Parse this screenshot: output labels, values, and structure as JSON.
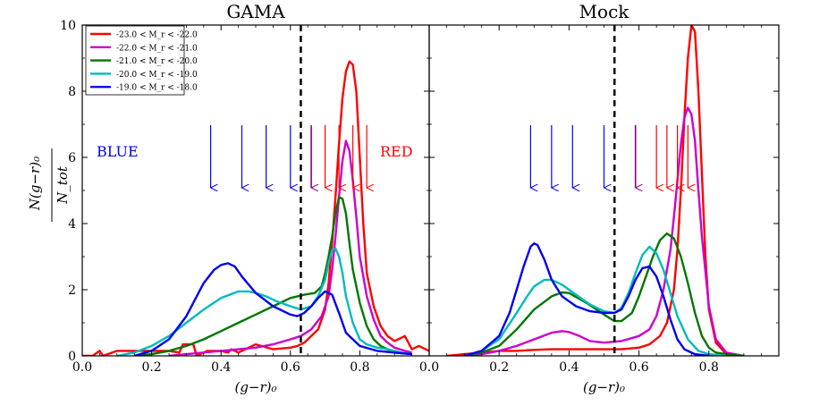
{
  "chart_data": {
    "type": "line",
    "xlabel": "(g−r)₀",
    "ylabel": {
      "numerator": "N(g−r)₀",
      "denominator": "N_tot"
    },
    "ylim": [
      0,
      10
    ],
    "y_ticks": [
      "0",
      "2",
      "4",
      "6",
      "8",
      "10"
    ],
    "legend": [
      {
        "label": "-23.0 < M_r < -22.0",
        "color": "#ff0000"
      },
      {
        "label": "-22.0 < M_r < -21.0",
        "color": "#cc00cc"
      },
      {
        "label": "-21.0 < M_r < -20.0",
        "color": "#007700"
      },
      {
        "label": "-20.0 < M_r < -19.0",
        "color": "#00bbbb"
      },
      {
        "label": "-19.0 < M_r < -18.0",
        "color": "#0000ee"
      }
    ],
    "annotation_blue": {
      "text": "BLUE",
      "color": "#0000ee"
    },
    "annotation_red": {
      "text": "RED",
      "color": "#ff0000"
    },
    "panels": [
      {
        "title": "GAMA",
        "xlim": [
          0.0,
          1.0
        ],
        "x_ticks": [
          "0.0",
          "0.2",
          "0.4",
          "0.6",
          "0.8"
        ],
        "divider_x": 0.63,
        "blue_arrows": [
          0.37,
          0.46,
          0.53,
          0.6
        ],
        "purple_arrow": 0.66,
        "red_arrows": [
          0.7,
          0.74,
          0.78,
          0.82
        ],
        "series": [
          {
            "name": "-23.0 < M_r < -22.0",
            "color": "#ff0000",
            "x": [
              0.0,
              0.03,
              0.05,
              0.06,
              0.1,
              0.15,
              0.2,
              0.25,
              0.28,
              0.29,
              0.32,
              0.33,
              0.35,
              0.36,
              0.4,
              0.42,
              0.43,
              0.45,
              0.5,
              0.55,
              0.6,
              0.62,
              0.64,
              0.66,
              0.68,
              0.7,
              0.71,
              0.72,
              0.73,
              0.74,
              0.75,
              0.76,
              0.77,
              0.78,
              0.79,
              0.8,
              0.81,
              0.82,
              0.84,
              0.86,
              0.88,
              0.9,
              0.93,
              0.95,
              0.97,
              1.0
            ],
            "y": [
              0.0,
              0.0,
              0.15,
              0.0,
              0.15,
              0.15,
              0.15,
              0.15,
              0.1,
              0.35,
              0.35,
              0.0,
              0.1,
              0.15,
              0.15,
              0.1,
              0.2,
              0.1,
              0.35,
              0.2,
              0.25,
              0.3,
              0.4,
              0.6,
              0.8,
              1.4,
              2.2,
              3.4,
              4.8,
              6.4,
              7.8,
              8.6,
              8.9,
              8.8,
              8.0,
              6.0,
              4.0,
              2.5,
              1.5,
              0.9,
              0.6,
              0.45,
              0.6,
              0.2,
              0.3,
              0.15
            ]
          },
          {
            "name": "-22.0 < M_r < -21.0",
            "color": "#cc00cc",
            "x": [
              0.25,
              0.3,
              0.35,
              0.4,
              0.45,
              0.5,
              0.55,
              0.6,
              0.63,
              0.66,
              0.69,
              0.71,
              0.72,
              0.73,
              0.74,
              0.75,
              0.76,
              0.77,
              0.78,
              0.79,
              0.8,
              0.82,
              0.84,
              0.86,
              0.88,
              0.9,
              0.93,
              0.95
            ],
            "y": [
              0.0,
              0.05,
              0.1,
              0.15,
              0.2,
              0.25,
              0.35,
              0.5,
              0.6,
              0.8,
              1.2,
              1.8,
              2.6,
              3.6,
              4.8,
              5.9,
              6.5,
              6.2,
              5.3,
              4.2,
              3.0,
              1.8,
              1.1,
              0.6,
              0.4,
              0.25,
              0.15,
              0.1
            ]
          },
          {
            "name": "-21.0 < M_r < -20.0",
            "color": "#007700",
            "x": [
              0.15,
              0.2,
              0.25,
              0.3,
              0.35,
              0.4,
              0.45,
              0.5,
              0.55,
              0.6,
              0.64,
              0.67,
              0.69,
              0.7,
              0.71,
              0.72,
              0.73,
              0.74,
              0.75,
              0.76,
              0.77,
              0.78,
              0.8,
              0.82,
              0.84,
              0.86,
              0.88,
              0.9,
              0.95
            ],
            "y": [
              0.0,
              0.05,
              0.15,
              0.3,
              0.5,
              0.75,
              1.0,
              1.25,
              1.5,
              1.75,
              1.85,
              1.9,
              2.1,
              2.5,
              3.0,
              3.6,
              4.3,
              4.8,
              4.75,
              4.3,
              3.4,
              2.6,
              1.6,
              0.9,
              0.5,
              0.3,
              0.2,
              0.1,
              0.05
            ]
          },
          {
            "name": "-20.0 < M_r < -19.0",
            "color": "#00bbbb",
            "x": [
              0.1,
              0.15,
              0.2,
              0.25,
              0.3,
              0.35,
              0.4,
              0.45,
              0.48,
              0.5,
              0.53,
              0.56,
              0.6,
              0.63,
              0.66,
              0.68,
              0.7,
              0.71,
              0.72,
              0.73,
              0.74,
              0.75,
              0.76,
              0.78,
              0.8,
              0.82,
              0.85,
              0.88,
              0.92,
              0.95
            ],
            "y": [
              0.0,
              0.1,
              0.3,
              0.6,
              1.0,
              1.4,
              1.75,
              1.95,
              1.95,
              1.9,
              1.8,
              1.65,
              1.5,
              1.4,
              1.5,
              1.8,
              2.3,
              2.8,
              3.2,
              3.25,
              3.0,
              2.5,
              1.8,
              1.0,
              0.5,
              0.35,
              0.25,
              0.2,
              0.1,
              0.05
            ]
          },
          {
            "name": "-19.0 < M_r < -18.0",
            "color": "#0000ee",
            "x": [
              0.15,
              0.2,
              0.25,
              0.3,
              0.33,
              0.35,
              0.38,
              0.4,
              0.42,
              0.44,
              0.46,
              0.5,
              0.55,
              0.6,
              0.62,
              0.64,
              0.66,
              0.68,
              0.7,
              0.72,
              0.74,
              0.76,
              0.8,
              0.85,
              0.9,
              0.95
            ],
            "y": [
              0.0,
              0.15,
              0.5,
              1.2,
              1.8,
              2.2,
              2.6,
              2.75,
              2.8,
              2.7,
              2.4,
              1.9,
              1.5,
              1.25,
              1.2,
              1.3,
              1.5,
              1.75,
              1.95,
              1.85,
              1.3,
              0.7,
              0.3,
              0.15,
              0.1,
              0.05
            ]
          }
        ]
      },
      {
        "title": "Mock",
        "xlim": [
          0.0,
          1.0
        ],
        "x_ticks": [
          "0.0",
          "0.2",
          "0.4",
          "0.6",
          "0.8"
        ],
        "divider_x": 0.53,
        "blue_arrows": [
          0.29,
          0.35,
          0.41,
          0.5
        ],
        "purple_arrow": 0.59,
        "red_arrows": [
          0.65,
          0.68,
          0.71,
          0.74
        ],
        "series": [
          {
            "name": "-23.0 < M_r < -22.0",
            "color": "#ff0000",
            "x": [
              0.05,
              0.1,
              0.15,
              0.2,
              0.25,
              0.3,
              0.35,
              0.4,
              0.45,
              0.5,
              0.55,
              0.6,
              0.63,
              0.66,
              0.68,
              0.7,
              0.71,
              0.72,
              0.73,
              0.74,
              0.75,
              0.76,
              0.77,
              0.78,
              0.79,
              0.8,
              0.82,
              0.85,
              0.9
            ],
            "y": [
              0.0,
              0.05,
              0.1,
              0.15,
              0.15,
              0.18,
              0.2,
              0.2,
              0.2,
              0.2,
              0.2,
              0.25,
              0.35,
              0.6,
              1.0,
              2.0,
              3.2,
              5.0,
              7.2,
              9.0,
              10.0,
              9.8,
              8.0,
              5.5,
              3.0,
              1.4,
              0.4,
              0.05,
              0.0
            ]
          },
          {
            "name": "-22.0 < M_r < -21.0",
            "color": "#cc00cc",
            "x": [
              0.1,
              0.15,
              0.2,
              0.25,
              0.3,
              0.35,
              0.38,
              0.4,
              0.43,
              0.46,
              0.5,
              0.55,
              0.6,
              0.63,
              0.65,
              0.67,
              0.69,
              0.7,
              0.71,
              0.72,
              0.73,
              0.74,
              0.75,
              0.76,
              0.77,
              0.78,
              0.8,
              0.82,
              0.85,
              0.9
            ],
            "y": [
              0.0,
              0.05,
              0.15,
              0.3,
              0.5,
              0.7,
              0.75,
              0.72,
              0.6,
              0.45,
              0.4,
              0.45,
              0.6,
              0.8,
              1.2,
              2.0,
              3.2,
              4.2,
              5.3,
              6.4,
              7.2,
              7.5,
              7.3,
              6.5,
              5.0,
              3.6,
              1.5,
              0.5,
              0.1,
              0.0
            ]
          },
          {
            "name": "-21.0 < M_r < -20.0",
            "color": "#007700",
            "x": [
              0.1,
              0.15,
              0.2,
              0.25,
              0.3,
              0.35,
              0.38,
              0.4,
              0.45,
              0.5,
              0.53,
              0.55,
              0.58,
              0.6,
              0.62,
              0.64,
              0.66,
              0.68,
              0.7,
              0.72,
              0.74,
              0.76,
              0.78,
              0.8,
              0.82,
              0.85,
              0.9
            ],
            "y": [
              0.0,
              0.1,
              0.3,
              0.8,
              1.4,
              1.8,
              1.92,
              1.9,
              1.6,
              1.25,
              1.05,
              1.05,
              1.3,
              1.8,
              2.4,
              3.0,
              3.5,
              3.7,
              3.55,
              3.0,
              2.2,
              1.3,
              0.6,
              0.25,
              0.1,
              0.05,
              0.0
            ]
          },
          {
            "name": "-20.0 < M_r < -19.0",
            "color": "#00bbbb",
            "x": [
              0.1,
              0.15,
              0.2,
              0.25,
              0.28,
              0.3,
              0.33,
              0.35,
              0.38,
              0.42,
              0.46,
              0.5,
              0.53,
              0.55,
              0.57,
              0.59,
              0.61,
              0.63,
              0.65,
              0.67,
              0.69,
              0.71,
              0.74,
              0.77,
              0.8,
              0.85
            ],
            "y": [
              0.0,
              0.15,
              0.5,
              1.3,
              1.8,
              2.1,
              2.3,
              2.3,
              2.15,
              1.85,
              1.55,
              1.35,
              1.3,
              1.45,
              1.9,
              2.5,
              3.05,
              3.3,
              3.1,
              2.6,
              1.9,
              1.2,
              0.5,
              0.15,
              0.05,
              0.0
            ]
          },
          {
            "name": "-19.0 < M_r < -18.0",
            "color": "#0000ee",
            "x": [
              0.1,
              0.15,
              0.2,
              0.23,
              0.25,
              0.27,
              0.29,
              0.3,
              0.31,
              0.33,
              0.35,
              0.38,
              0.42,
              0.46,
              0.5,
              0.53,
              0.55,
              0.57,
              0.59,
              0.61,
              0.63,
              0.65,
              0.67,
              0.69,
              0.71,
              0.73,
              0.76,
              0.8
            ],
            "y": [
              0.0,
              0.15,
              0.6,
              1.3,
              2.0,
              2.7,
              3.3,
              3.4,
              3.35,
              2.9,
              2.3,
              1.8,
              1.5,
              1.35,
              1.3,
              1.3,
              1.4,
              1.8,
              2.3,
              2.65,
              2.7,
              2.4,
              1.8,
              1.1,
              0.5,
              0.2,
              0.05,
              0.0
            ]
          }
        ]
      }
    ]
  }
}
